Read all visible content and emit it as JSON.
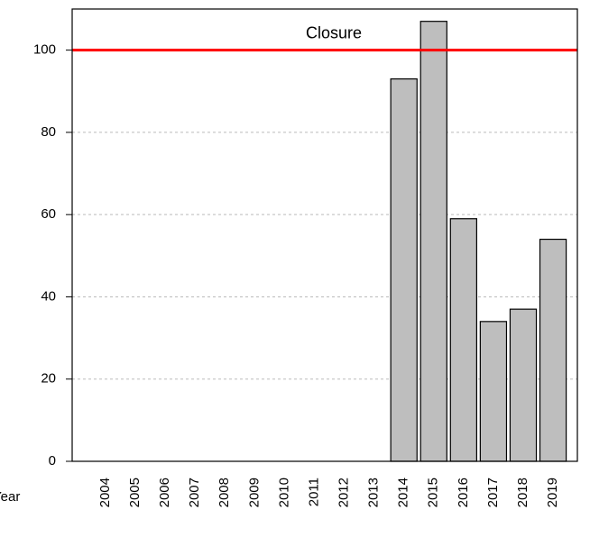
{
  "chart_data": {
    "type": "bar",
    "x_label": "Year",
    "categories": [
      "2004",
      "2005",
      "2006",
      "2007",
      "2008",
      "2009",
      "2010",
      "2011",
      "2012",
      "2013",
      "2014",
      "2015",
      "2016",
      "2017",
      "2018",
      "2019"
    ],
    "values": [
      null,
      null,
      null,
      null,
      null,
      null,
      null,
      null,
      null,
      null,
      93,
      107,
      59,
      34,
      37,
      54
    ],
    "color": "#bebebe",
    "ylim": [
      0,
      110
    ],
    "yticks": [
      0,
      20,
      40,
      60,
      80,
      100
    ],
    "grid": true,
    "reference_line": {
      "value": 100,
      "label": "Closure",
      "color": "#ff0000"
    }
  }
}
